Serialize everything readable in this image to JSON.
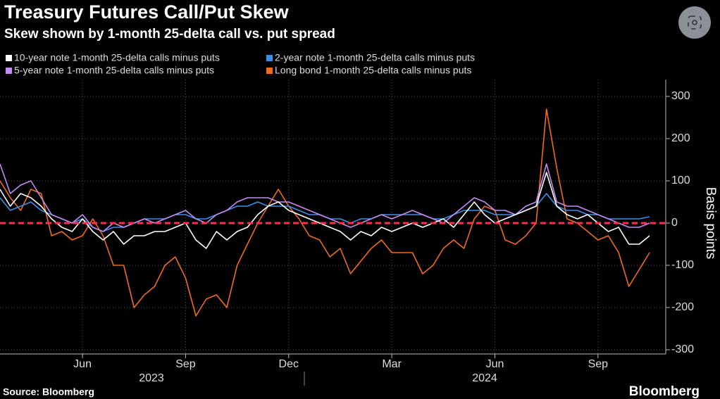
{
  "chart_data": {
    "type": "line",
    "title": "Treasury Futures Call/Put Skew",
    "subtitle": "Skew shown by 1-month 25-delta call vs. put spread",
    "ylabel": "Basis points",
    "source": "Source: Bloomberg",
    "brand": "Bloomberg",
    "categories": [
      null,
      null,
      null,
      null,
      null,
      null,
      null,
      null,
      "Jun",
      null,
      null,
      null,
      null,
      null,
      null,
      null,
      null,
      null,
      "Sep",
      null,
      null,
      null,
      null,
      null,
      null,
      null,
      null,
      null,
      "Dec",
      null,
      null,
      null,
      null,
      null,
      null,
      null,
      null,
      null,
      "Mar",
      null,
      null,
      null,
      null,
      null,
      null,
      null,
      null,
      null,
      "Jun",
      null,
      null,
      null,
      null,
      null,
      null,
      null,
      null,
      null,
      "Sep",
      null,
      null,
      null,
      null,
      null
    ],
    "x_group_labels": [
      "2023",
      "2024"
    ],
    "ylim": [
      -310,
      340
    ],
    "yticks": [
      -300,
      -200,
      -100,
      0,
      100,
      200,
      300
    ],
    "grid": true,
    "reference_lines": [
      {
        "value": 0,
        "color": "#ff2e4d"
      }
    ],
    "series": [
      {
        "name": "10-year note 1-month 25-delta calls minus puts",
        "color": "#ffffff",
        "values": [
          80,
          40,
          70,
          60,
          40,
          10,
          -10,
          -20,
          10,
          -20,
          -40,
          -20,
          -50,
          -30,
          -30,
          -20,
          -20,
          -10,
          0,
          -40,
          -60,
          -20,
          -40,
          -20,
          -10,
          20,
          40,
          50,
          30,
          20,
          10,
          0,
          -10,
          -20,
          -40,
          -20,
          -30,
          -10,
          -20,
          -10,
          0,
          -10,
          0,
          10,
          -10,
          20,
          50,
          20,
          0,
          10,
          20,
          30,
          40,
          120,
          40,
          20,
          10,
          20,
          0,
          -20,
          -10,
          -50,
          -50,
          -30
        ]
      },
      {
        "name": "2-year note 1-month 25-delta calls minus puts",
        "color": "#3b8fe8",
        "values": [
          60,
          30,
          40,
          50,
          30,
          20,
          10,
          0,
          10,
          -10,
          -20,
          -10,
          -10,
          0,
          10,
          10,
          10,
          20,
          20,
          10,
          10,
          20,
          30,
          40,
          40,
          50,
          40,
          40,
          40,
          30,
          20,
          20,
          10,
          10,
          0,
          10,
          10,
          20,
          20,
          20,
          20,
          20,
          10,
          10,
          20,
          30,
          30,
          30,
          20,
          20,
          20,
          30,
          40,
          70,
          40,
          30,
          30,
          20,
          20,
          10,
          10,
          10,
          10,
          15
        ]
      },
      {
        "name": "5-year note 1-month 25-delta calls minus puts",
        "color": "#c58bf0",
        "values": [
          140,
          70,
          90,
          100,
          60,
          20,
          10,
          0,
          20,
          -10,
          -20,
          0,
          -10,
          0,
          10,
          0,
          10,
          20,
          30,
          10,
          0,
          20,
          30,
          50,
          60,
          60,
          60,
          50,
          50,
          40,
          30,
          20,
          10,
          0,
          -10,
          0,
          10,
          20,
          10,
          20,
          30,
          20,
          10,
          0,
          20,
          40,
          60,
          50,
          30,
          30,
          20,
          40,
          50,
          140,
          50,
          40,
          40,
          30,
          20,
          10,
          0,
          -10,
          -10,
          0
        ]
      },
      {
        "name": "Long bond 1-month 25-delta calls minus puts",
        "color": "#f26a1b",
        "values": [
          100,
          60,
          30,
          80,
          70,
          -30,
          -20,
          -40,
          -30,
          10,
          -30,
          -100,
          -100,
          -200,
          -170,
          -150,
          -100,
          -80,
          -130,
          -220,
          -180,
          -170,
          -200,
          -100,
          -50,
          0,
          40,
          80,
          40,
          10,
          -30,
          -40,
          -80,
          -60,
          -120,
          -90,
          -60,
          -40,
          -70,
          -70,
          -70,
          -120,
          -100,
          -60,
          -40,
          -60,
          10,
          40,
          30,
          -40,
          -50,
          -30,
          0,
          270,
          130,
          10,
          0,
          -20,
          -40,
          -30,
          -70,
          -150,
          -110,
          -70
        ]
      }
    ]
  }
}
